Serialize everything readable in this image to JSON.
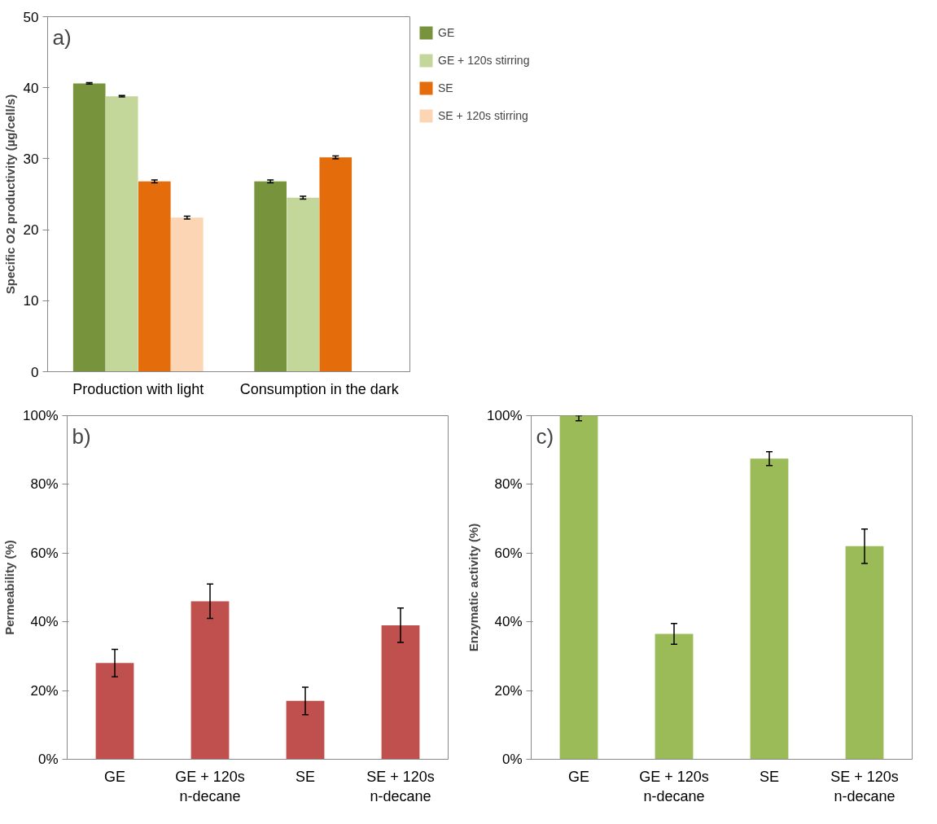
{
  "chart_data": [
    {
      "type": "bar",
      "annotations": [
        "a)"
      ],
      "ylabel": "Specific O2 productivity (µg/cell/s)",
      "categories": [
        "Production with light",
        "Consumption in the dark"
      ],
      "series": [
        {
          "name": "GE",
          "color": "#77933c",
          "values": [
            40.6,
            26.8
          ],
          "errors": [
            0.1,
            0.2
          ]
        },
        {
          "name": "GE + 120s stirring",
          "color": "#c4d79b",
          "values": [
            38.8,
            24.5
          ],
          "errors": [
            0.1,
            0.2
          ]
        },
        {
          "name": "SE",
          "color": "#e46c0a",
          "values": [
            26.8,
            30.2
          ],
          "errors": [
            0.2,
            0.2
          ]
        },
        {
          "name": "SE + 120s stirring",
          "color": "#fcd5b5",
          "values": [
            21.7,
            null
          ],
          "errors": [
            0.2,
            null
          ]
        }
      ],
      "ylim": [
        0,
        50
      ],
      "yticks": [
        0,
        10,
        20,
        30,
        40,
        50
      ],
      "legend": "top right",
      "grid": false
    },
    {
      "type": "bar",
      "annotations": [
        "b)"
      ],
      "ylabel": "Permeability (%)",
      "categories": [
        "GE",
        "GE + 120s\nn-decane",
        "SE",
        "SE + 120s\nn-decane"
      ],
      "series": [
        {
          "color": "#c0504d",
          "values": [
            28,
            46,
            17,
            39
          ],
          "errors": [
            4,
            5,
            4,
            5
          ]
        }
      ],
      "ylim": [
        0,
        100
      ],
      "yticks": [
        {
          "value": 0,
          "label": "0%"
        },
        {
          "value": 20,
          "label": "20%"
        },
        {
          "value": 40,
          "label": "40%"
        },
        {
          "value": 60,
          "label": "60%"
        },
        {
          "value": 80,
          "label": "80%"
        },
        {
          "value": 100,
          "label": "100%"
        }
      ],
      "grid": false
    },
    {
      "type": "bar",
      "annotations": [
        "c)"
      ],
      "ylabel": "Enzymatic activity (%)",
      "categories": [
        "GE",
        "GE + 120s\nn-decane",
        "SE",
        "SE + 120s\nn-decane"
      ],
      "series": [
        {
          "color": "#9bbb59",
          "values": [
            100,
            36.5,
            87.5,
            62
          ],
          "errors": [
            [
              98.5,
              100
            ],
            3,
            2,
            5
          ]
        }
      ],
      "ylim": [
        0,
        100
      ],
      "yticks": [
        {
          "value": 0,
          "label": "0%"
        },
        {
          "value": 20,
          "label": "20%"
        },
        {
          "value": 40,
          "label": "40%"
        },
        {
          "value": 60,
          "label": "60%"
        },
        {
          "value": 80,
          "label": "80%"
        },
        {
          "value": 100,
          "label": "100%"
        }
      ],
      "grid": false
    }
  ]
}
